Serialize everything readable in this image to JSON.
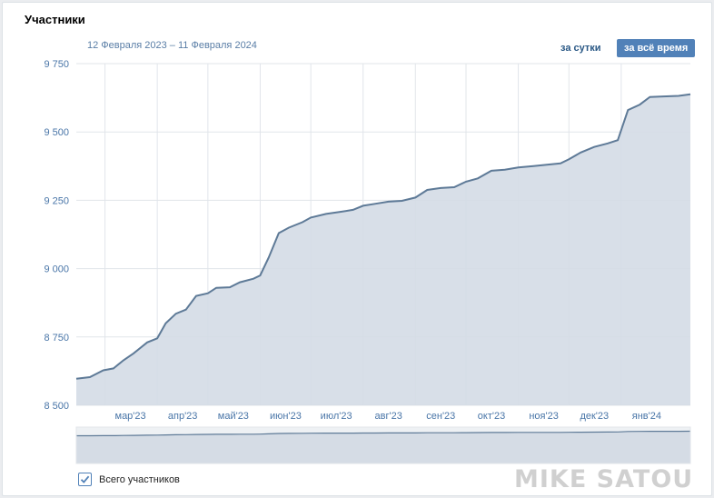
{
  "header": {
    "title": "Участники",
    "date_range": "12 Февраля 2023 – 11 Февраля 2024",
    "btn_day": "за сутки",
    "btn_all": "за всё время"
  },
  "legend": {
    "label": "Всего участников",
    "checked": true
  },
  "watermark": "MIKE SATOU",
  "colors": {
    "line": "#5e7a97",
    "fill": "#d4dbe5",
    "grid": "#e1e5ea",
    "accent": "#5181b8"
  },
  "chart_data": {
    "type": "area",
    "title": "",
    "xlabel": "",
    "ylabel": "",
    "ylim": [
      8500,
      9750
    ],
    "yticks": [
      8500,
      8750,
      9000,
      9250,
      9500,
      9750
    ],
    "ytick_labels": [
      "8 500",
      "8 750",
      "9 000",
      "9 250",
      "9 500",
      "9 750"
    ],
    "xticks": [
      "2023-03-01",
      "2023-04-01",
      "2023-05-01",
      "2023-06-01",
      "2023-07-01",
      "2023-08-01",
      "2023-09-01",
      "2023-10-01",
      "2023-11-01",
      "2023-12-01",
      "2024-01-01"
    ],
    "xtick_labels": [
      "мар'23",
      "апр'23",
      "май'23",
      "июн'23",
      "июл'23",
      "авг'23",
      "сен'23",
      "окт'23",
      "ноя'23",
      "дек'23",
      "янв'24"
    ],
    "xlim": [
      "2023-02-12",
      "2024-02-11"
    ],
    "grid": true,
    "series": [
      {
        "points": [
          [
            "2023-02-12",
            8597
          ],
          [
            "2023-02-20",
            8603
          ],
          [
            "2023-02-28",
            8628
          ],
          [
            "2023-03-06",
            8635
          ],
          [
            "2023-03-12",
            8665
          ],
          [
            "2023-03-18",
            8690
          ],
          [
            "2023-03-26",
            8730
          ],
          [
            "2023-04-01",
            8745
          ],
          [
            "2023-04-06",
            8800
          ],
          [
            "2023-04-12",
            8835
          ],
          [
            "2023-04-18",
            8850
          ],
          [
            "2023-04-24",
            8900
          ],
          [
            "2023-05-01",
            8910
          ],
          [
            "2023-05-06",
            8930
          ],
          [
            "2023-05-14",
            8932
          ],
          [
            "2023-05-20",
            8950
          ],
          [
            "2023-05-28",
            8963
          ],
          [
            "2023-06-01",
            8975
          ],
          [
            "2023-06-06",
            9040
          ],
          [
            "2023-06-12",
            9130
          ],
          [
            "2023-06-18",
            9150
          ],
          [
            "2023-06-26",
            9170
          ],
          [
            "2023-07-01",
            9187
          ],
          [
            "2023-07-10",
            9200
          ],
          [
            "2023-07-18",
            9207
          ],
          [
            "2023-07-26",
            9215
          ],
          [
            "2023-08-01",
            9230
          ],
          [
            "2023-08-08",
            9237
          ],
          [
            "2023-08-16",
            9245
          ],
          [
            "2023-08-24",
            9248
          ],
          [
            "2023-09-01",
            9260
          ],
          [
            "2023-09-08",
            9288
          ],
          [
            "2023-09-16",
            9295
          ],
          [
            "2023-09-24",
            9298
          ],
          [
            "2023-10-01",
            9318
          ],
          [
            "2023-10-08",
            9330
          ],
          [
            "2023-10-16",
            9358
          ],
          [
            "2023-10-24",
            9362
          ],
          [
            "2023-11-01",
            9370
          ],
          [
            "2023-11-10",
            9375
          ],
          [
            "2023-11-18",
            9380
          ],
          [
            "2023-11-26",
            9385
          ],
          [
            "2023-12-01",
            9400
          ],
          [
            "2023-12-08",
            9425
          ],
          [
            "2023-12-16",
            9445
          ],
          [
            "2023-12-24",
            9458
          ],
          [
            "2023-12-30",
            9470
          ],
          [
            "2024-01-05",
            9580
          ],
          [
            "2024-01-12",
            9600
          ],
          [
            "2024-01-18",
            9628
          ],
          [
            "2024-01-26",
            9630
          ],
          [
            "2024-02-04",
            9632
          ],
          [
            "2024-02-11",
            9638
          ]
        ]
      }
    ]
  }
}
